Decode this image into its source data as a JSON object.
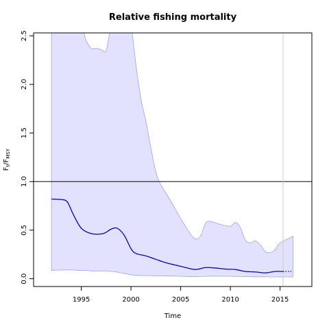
{
  "chart_data": {
    "type": "line",
    "title": "Relative fishing mortality",
    "xlabel": "Time",
    "ylabel_main": "F",
    "ylabel_sub1": "t",
    "ylabel_sep": "/F",
    "ylabel_sub2": "MSY",
    "xlim": [
      1990.2,
      2018.2
    ],
    "ylim": [
      -0.08,
      2.53
    ],
    "x_ticks": [
      1995,
      2000,
      2005,
      2010,
      2015
    ],
    "x_tick_labels": [
      "1995",
      "2000",
      "2005",
      "2010",
      "2015"
    ],
    "y_ticks": [
      0.0,
      0.5,
      1.0,
      1.5,
      2.0,
      2.5
    ],
    "y_tick_labels": [
      "0.0",
      "0.5",
      "1.0",
      "1.5",
      "2.0",
      "2.5"
    ],
    "reference_line_y": 1.0,
    "vertical_line_x": 2015.3,
    "grid": false,
    "colors": {
      "line": "#0000cc",
      "band_fill": "#e2e2ff",
      "band_edge": "#a0a0f0",
      "ref_line": "#000000",
      "vline": "#cccccc"
    },
    "series": [
      {
        "x": [
          1992.0,
          1993.0,
          1993.6,
          1994.2,
          1995.0,
          1996.0,
          1997.2,
          1998.0,
          1998.6,
          1999.3,
          2000.0,
          2000.5,
          2001.5,
          2002.5,
          2003.5,
          2004.5,
          2005.5,
          2006.5,
          2007.5,
          2008.5,
          2009.5,
          2010.5,
          2011.5,
          2012.5,
          2013.5,
          2014.5,
          2015.3
        ],
        "values": [
          0.82,
          0.815,
          0.79,
          0.66,
          0.52,
          0.465,
          0.465,
          0.51,
          0.52,
          0.45,
          0.31,
          0.26,
          0.235,
          0.2,
          0.165,
          0.14,
          0.115,
          0.095,
          0.115,
          0.11,
          0.1,
          0.095,
          0.075,
          0.07,
          0.06,
          0.075,
          0.075
        ]
      },
      {
        "style": "dotted",
        "x": [
          2015.3,
          2016.2
        ],
        "values": [
          0.075,
          0.075
        ]
      }
    ],
    "band": {
      "x": [
        1992.0,
        1993.0,
        1994.0,
        1995.0,
        1995.5,
        1996.0,
        1996.5,
        1997.0,
        1997.5,
        1998.0,
        1998.5,
        1999.0,
        1999.5,
        2000.0,
        2000.5,
        2001.0,
        2001.5,
        2002.0,
        2002.5,
        2003.0,
        2004.0,
        2005.0,
        2006.0,
        2006.5,
        2007.0,
        2007.5,
        2008.0,
        2009.0,
        2010.0,
        2010.5,
        2011.0,
        2011.5,
        2012.0,
        2012.5,
        2013.0,
        2013.5,
        2014.0,
        2014.5,
        2015.0,
        2016.0,
        2016.3
      ],
      "upper": [
        2.6,
        2.6,
        2.6,
        2.6,
        2.45,
        2.37,
        2.37,
        2.36,
        2.35,
        2.6,
        2.6,
        2.6,
        2.6,
        2.6,
        2.2,
        1.85,
        1.62,
        1.35,
        1.1,
        0.97,
        0.8,
        0.62,
        0.46,
        0.41,
        0.44,
        0.57,
        0.59,
        0.56,
        0.54,
        0.58,
        0.53,
        0.4,
        0.37,
        0.39,
        0.35,
        0.28,
        0.27,
        0.3,
        0.37,
        0.42,
        0.44
      ],
      "lower": [
        0.085,
        0.09,
        0.09,
        0.085,
        0.085,
        0.08,
        0.08,
        0.08,
        0.08,
        0.075,
        0.07,
        0.06,
        0.05,
        0.04,
        0.035,
        0.033,
        0.032,
        0.032,
        0.03,
        0.03,
        0.028,
        0.025,
        0.022,
        0.022,
        0.023,
        0.025,
        0.026,
        0.026,
        0.025,
        0.024,
        0.023,
        0.022,
        0.021,
        0.02,
        0.02,
        0.02,
        0.019,
        0.019,
        0.019,
        0.019,
        0.019
      ]
    }
  }
}
